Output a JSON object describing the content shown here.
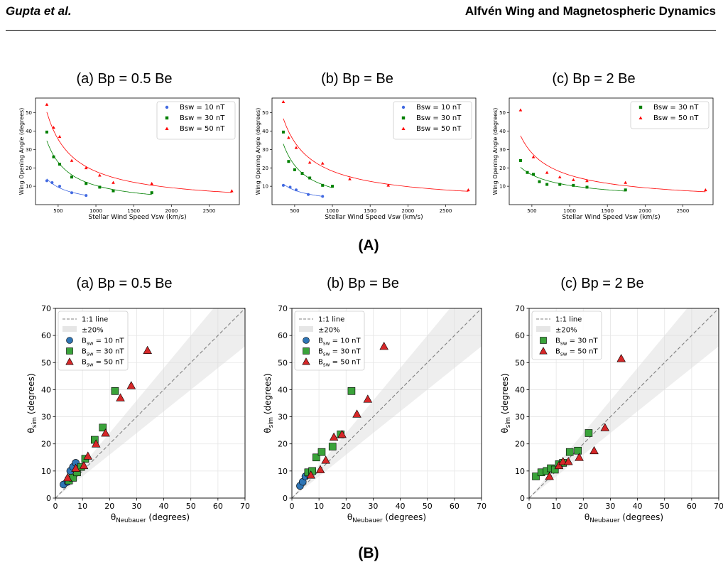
{
  "header": {
    "left": "Gupta et al.",
    "right": "Alfvén Wing and Magnetospheric Dynamics"
  },
  "sections": {
    "a": "(A)",
    "b": "(B)"
  },
  "titles": {
    "a_row": [
      "(a) Bp = 0.5 Be",
      "(b) Bp = Be",
      "(c) Bp = 2 Be"
    ],
    "b_row": [
      "(a)  Bp = 0.5 Be",
      "(b) Bp = Be",
      "(c) Bp = 2 Be"
    ]
  },
  "colors": {
    "blue": "#4169e1",
    "green": "#008000",
    "red": "#ff0000",
    "blue_fill": "#2f75b5",
    "green_fill": "#3aa33a",
    "red_fill": "#d62728"
  },
  "chart_data": [
    {
      "type": "scatter",
      "panel": "A-a",
      "xlabel": "Stellar Wind Speed Vsw (km/s)",
      "ylabel": "Wing Opening Angle (degrees)",
      "xlim": [
        200,
        2900
      ],
      "ylim": [
        0,
        58
      ],
      "xticks": [
        500,
        1000,
        1500,
        2000,
        2500
      ],
      "yticks": [
        10,
        20,
        30,
        40,
        50
      ],
      "legend_position": "top-right",
      "series": [
        {
          "name": "Bsw = 10 nT",
          "color": "blue",
          "marker": "circle",
          "x": [
            350,
            420,
            520,
            680,
            870
          ],
          "y": [
            13,
            12,
            10,
            6.5,
            5
          ]
        },
        {
          "name": "Bsw = 30 nT",
          "color": "green",
          "marker": "square",
          "x": [
            350,
            440,
            520,
            680,
            870,
            1050,
            1230,
            1740
          ],
          "y": [
            39.5,
            26,
            22,
            15,
            11.5,
            9.5,
            7.5,
            6.5
          ]
        },
        {
          "name": "Bsw = 50 nT",
          "color": "red",
          "marker": "triangle",
          "x": [
            350,
            440,
            520,
            680,
            870,
            1050,
            1230,
            1740,
            2800
          ],
          "y": [
            54.5,
            42,
            37,
            24,
            20,
            16,
            12,
            11.5,
            7.5
          ]
        }
      ]
    },
    {
      "type": "scatter",
      "panel": "A-b",
      "xlabel": "Stellar Wind Speed Vsw (km/s)",
      "ylabel": "Wing Opening Angle (degrees)",
      "xlim": [
        200,
        2900
      ],
      "ylim": [
        0,
        58
      ],
      "xticks": [
        500,
        1000,
        1500,
        2000,
        2500
      ],
      "yticks": [
        10,
        20,
        30,
        40,
        50
      ],
      "legend_position": "top-right",
      "series": [
        {
          "name": "Bsw = 10 nT",
          "color": "blue",
          "marker": "circle",
          "x": [
            350,
            440,
            520,
            680,
            870
          ],
          "y": [
            10.5,
            9.5,
            8,
            5.5,
            4.5
          ]
        },
        {
          "name": "Bsw = 30 nT",
          "color": "green",
          "marker": "square",
          "x": [
            350,
            420,
            500,
            600,
            700,
            870,
            1000
          ],
          "y": [
            39.5,
            23.5,
            19,
            17,
            14.5,
            10.5,
            10
          ]
        },
        {
          "name": "Bsw = 50 nT",
          "color": "red",
          "marker": "triangle",
          "x": [
            350,
            420,
            520,
            700,
            870,
            1230,
            1740,
            2800
          ],
          "y": [
            56,
            36.5,
            31,
            23,
            22.5,
            14,
            10.5,
            8
          ]
        }
      ]
    },
    {
      "type": "scatter",
      "panel": "A-c",
      "xlabel": "Stellar Wind Speed Vsw (km/s)",
      "ylabel": "Wing Opening Angle (degrees)",
      "xlim": [
        200,
        2900
      ],
      "ylim": [
        0,
        58
      ],
      "xticks": [
        500,
        1000,
        1500,
        2000,
        2500
      ],
      "yticks": [
        10,
        20,
        30,
        40,
        50
      ],
      "legend_position": "top-right",
      "series": [
        {
          "name": "Bsw = 30 nT",
          "color": "green",
          "marker": "square",
          "x": [
            350,
            440,
            520,
            600,
            700,
            870,
            1050,
            1230,
            1740
          ],
          "y": [
            24,
            17.5,
            16.5,
            12.5,
            11,
            11,
            10.5,
            9.5,
            8
          ]
        },
        {
          "name": "Bsw = 50 nT",
          "color": "red",
          "marker": "triangle",
          "x": [
            350,
            520,
            700,
            870,
            1050,
            1230,
            1740,
            2800
          ],
          "y": [
            51.5,
            26,
            17.5,
            15,
            13.5,
            13,
            12,
            8
          ]
        }
      ]
    },
    {
      "type": "scatter",
      "panel": "B-a",
      "xlabel": "θ_Neubauer (degrees)",
      "ylabel": "θ_sim (degrees)",
      "xlim": [
        0,
        70
      ],
      "ylim": [
        0,
        70
      ],
      "ticks": [
        0,
        10,
        20,
        30,
        40,
        50,
        60,
        70
      ],
      "grid": true,
      "legend_position": "top-left",
      "legend": [
        "1:1 line",
        "±20%",
        "B_sw = 10 nT",
        "B_sw = 30 nT",
        "B_sw = 50 nT"
      ],
      "series": [
        {
          "name": "B_sw = 10 nT",
          "color": "blue_fill",
          "marker": "circle",
          "x": [
            3,
            4.5,
            5.5,
            6.5,
            7.5
          ],
          "y": [
            5,
            6,
            10,
            11.5,
            13
          ]
        },
        {
          "name": "B_sw = 30 nT",
          "color": "green_fill",
          "marker": "square",
          "x": [
            5,
            6.5,
            8,
            9.5,
            11,
            14.5,
            17.5,
            22
          ],
          "y": [
            6.5,
            7.5,
            9.5,
            11.5,
            14.5,
            21.5,
            26,
            39.5
          ]
        },
        {
          "name": "B_sw = 50 nT",
          "color": "red_fill",
          "marker": "triangle",
          "x": [
            4.5,
            7.5,
            10.5,
            12,
            15,
            18.5,
            24,
            28,
            34
          ],
          "y": [
            7.5,
            11,
            12,
            15.5,
            20,
            24,
            37,
            41.5,
            54.5
          ]
        }
      ]
    },
    {
      "type": "scatter",
      "panel": "B-b",
      "xlabel": "θ_Neubauer (degrees)",
      "ylabel": "θ_sim (degrees)",
      "xlim": [
        0,
        70
      ],
      "ylim": [
        0,
        70
      ],
      "ticks": [
        0,
        10,
        20,
        30,
        40,
        50,
        60,
        70
      ],
      "grid": true,
      "legend_position": "top-left",
      "legend": [
        "1:1 line",
        "±20%",
        "B_sw = 10 nT",
        "B_sw = 30 nT",
        "B_sw = 50 nT"
      ],
      "series": [
        {
          "name": "B_sw = 10 nT",
          "color": "blue_fill",
          "marker": "circle",
          "x": [
            3,
            4,
            5,
            6
          ],
          "y": [
            4.5,
            6,
            8,
            9
          ]
        },
        {
          "name": "B_sw = 30 nT",
          "color": "green_fill",
          "marker": "square",
          "x": [
            6,
            7.5,
            9,
            11,
            15,
            18,
            22
          ],
          "y": [
            9.5,
            10,
            15,
            17,
            19,
            23.5,
            39.5
          ]
        },
        {
          "name": "B_sw = 50 nT",
          "color": "red_fill",
          "marker": "triangle",
          "x": [
            7,
            10.5,
            12.5,
            15.5,
            18.5,
            24,
            28,
            34
          ],
          "y": [
            8.5,
            10.5,
            14,
            22.5,
            23.5,
            31,
            36.5,
            56
          ]
        }
      ]
    },
    {
      "type": "scatter",
      "panel": "B-c",
      "xlabel": "θ_Neubauer (degrees)",
      "ylabel": "θ_sim (degrees)",
      "xlim": [
        0,
        70
      ],
      "ylim": [
        0,
        70
      ],
      "ticks": [
        0,
        10,
        20,
        30,
        40,
        50,
        60,
        70
      ],
      "grid": true,
      "legend_position": "top-left",
      "legend": [
        "1:1 line",
        "±20%",
        "B_sw = 30 nT",
        "B_sw = 50 nT"
      ],
      "series": [
        {
          "name": "B_sw = 30 nT",
          "color": "green_fill",
          "marker": "square",
          "x": [
            2.5,
            4.5,
            6.5,
            8,
            9.5,
            11,
            12.5,
            15,
            18,
            22
          ],
          "y": [
            8,
            9.5,
            10,
            11,
            10.5,
            12.5,
            13,
            17,
            17.5,
            24
          ]
        },
        {
          "name": "B_sw = 50 nT",
          "color": "red_fill",
          "marker": "triangle",
          "x": [
            7.5,
            11,
            12.5,
            14.5,
            18.5,
            24,
            28,
            34
          ],
          "y": [
            8,
            12,
            13.5,
            13.5,
            15,
            17.5,
            26,
            51.5
          ]
        }
      ]
    }
  ]
}
